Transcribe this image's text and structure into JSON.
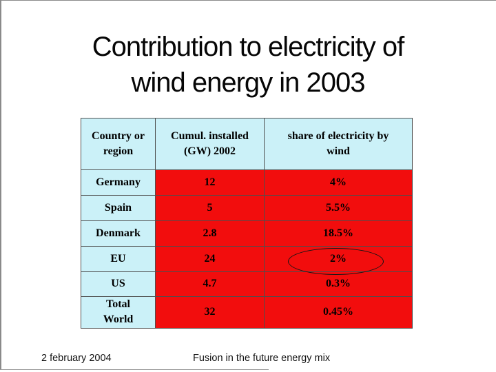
{
  "slide": {
    "title_line1": "Contribution to electricity of",
    "title_line2": "wind energy in 2003",
    "footer_date": "2 february 2004",
    "footer_center": "Fusion in the future energy mix"
  },
  "table": {
    "headers": {
      "region": "Country or\nregion",
      "installed": "Cumul. installed\n(GW) 2002",
      "share": "share of electricity by\nwind"
    },
    "rows": [
      {
        "region": "Germany",
        "installed": "12",
        "share": "4%"
      },
      {
        "region": "Spain",
        "installed": "5",
        "share": "5.5%"
      },
      {
        "region": "Denmark",
        "installed": "2.8",
        "share": "18.5%"
      },
      {
        "region": "EU",
        "installed": "24",
        "share": "2%"
      },
      {
        "region": "US",
        "installed": "4.7",
        "share": "0.3%"
      },
      {
        "region": "Total\nWorld",
        "installed": "32",
        "share": "0.45%"
      }
    ],
    "highlight": {
      "row": "EU",
      "column": "share",
      "value": "2%",
      "shape": "ellipse"
    }
  },
  "chart_data": {
    "type": "table",
    "title": "Contribution to electricity of wind energy in 2003",
    "columns": [
      "Country or region",
      "Cumul. installed (GW) 2002",
      "share of electricity by wind"
    ],
    "categories": [
      "Germany",
      "Spain",
      "Denmark",
      "EU",
      "US",
      "Total World"
    ],
    "series": [
      {
        "name": "Cumul. installed (GW) 2002",
        "values": [
          12,
          5,
          2.8,
          24,
          4.7,
          32
        ]
      },
      {
        "name": "share of electricity by wind (%)",
        "values": [
          4,
          5.5,
          18.5,
          2,
          0.3,
          0.45
        ]
      }
    ],
    "annotations": [
      "ellipse around EU share value 2%"
    ]
  },
  "colors": {
    "background": "#ffffff",
    "header_cell": "#cbf1f8",
    "label_cell": "#cbf1f8",
    "data_cell_red": "#f20d0d",
    "grid_border": "#4e4e4e",
    "frame_gray": "#8a8a8a",
    "title_text": "#060606"
  }
}
